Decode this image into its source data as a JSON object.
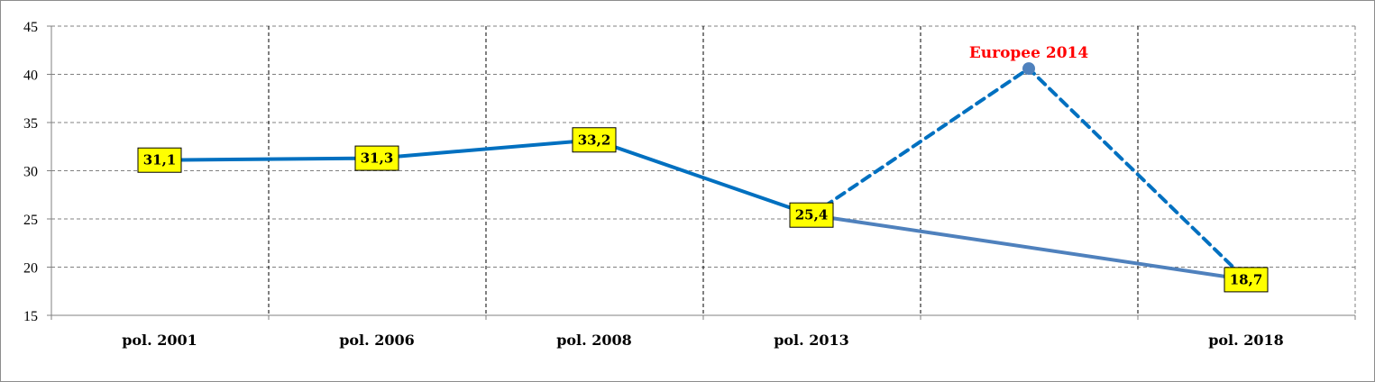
{
  "chart_data": {
    "type": "line",
    "title": "",
    "xlabel": "",
    "ylabel": "",
    "ylim": [
      15,
      45
    ],
    "y_ticks": [
      15,
      20,
      25,
      30,
      35,
      40,
      45
    ],
    "grid": true,
    "legend": "none",
    "x_ticks": [
      {
        "label": "pol. 2001",
        "x": 0
      },
      {
        "label": "pol. 2006",
        "x": 1
      },
      {
        "label": "pol. 2008",
        "x": 2
      },
      {
        "label": "pol. 2013",
        "x": 3
      },
      {
        "label": "",
        "x": 4
      },
      {
        "label": "pol. 2018",
        "x": 5
      }
    ],
    "series": [
      {
        "style": "solid",
        "color": "#0070c0",
        "points": [
          {
            "x": 0,
            "y": 31.1,
            "label": "31,1"
          },
          {
            "x": 1,
            "y": 31.3,
            "label": "31,3"
          },
          {
            "x": 2,
            "y": 33.2,
            "label": "33,2"
          },
          {
            "x": 3,
            "y": 25.4,
            "label": "25,4"
          }
        ]
      },
      {
        "style": "solid",
        "color": "#4f81bd",
        "points": [
          {
            "x": 3,
            "y": 25.4
          },
          {
            "x": 5,
            "y": 18.7,
            "label": "18,7"
          }
        ]
      },
      {
        "style": "dashed",
        "color": "#0070c0",
        "points": [
          {
            "x": 3,
            "y": 25.4
          },
          {
            "x": 4,
            "y": 40.6
          },
          {
            "x": 5,
            "y": 18.7
          }
        ]
      }
    ],
    "annotations": [
      {
        "text": "Europee 2014",
        "x": 4,
        "y": 40.6,
        "color": "#ff0000"
      }
    ],
    "colors": {
      "data_label_fill": "#ffff00",
      "grid": "#808080",
      "axis": "#808080"
    }
  }
}
